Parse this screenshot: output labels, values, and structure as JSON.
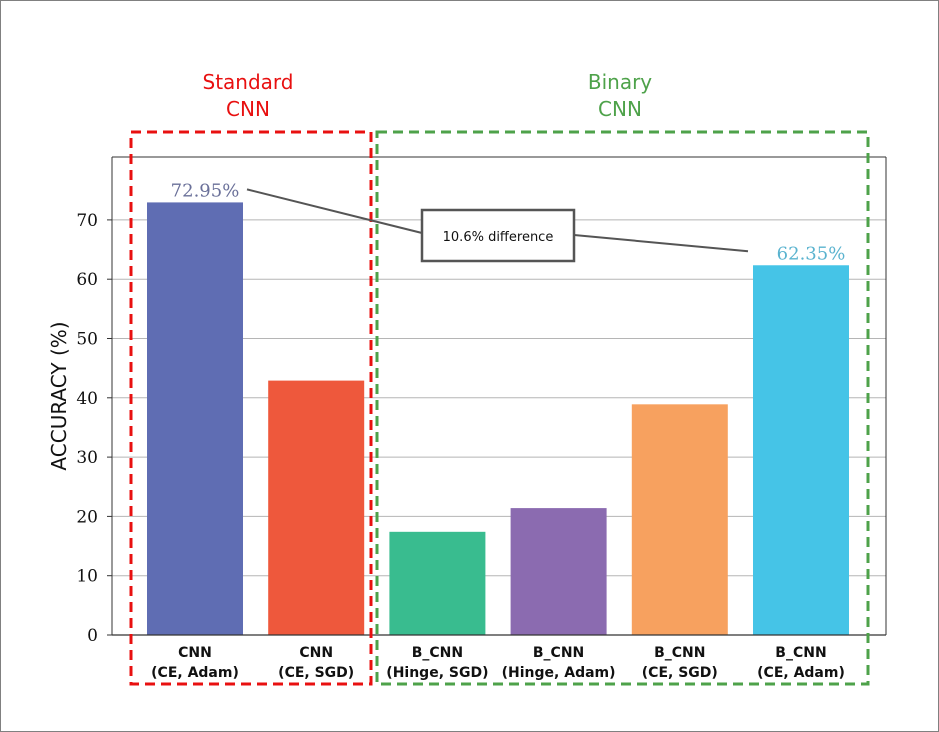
{
  "chart_data": {
    "type": "bar",
    "title": "",
    "xlabel": "",
    "ylabel": "ACCURACY (%)",
    "ylim": [
      0,
      80
    ],
    "yticks": [
      0,
      10,
      20,
      30,
      40,
      50,
      60,
      70
    ],
    "grid": true,
    "categories": [
      [
        "CNN",
        "(CE, Adam)"
      ],
      [
        "CNN",
        "(CE, SGD)"
      ],
      [
        "B_CNN",
        "(Hinge, SGD)"
      ],
      [
        "B_CNN",
        "(Hinge, Adam)"
      ],
      [
        "B_CNN",
        "(CE, SGD)"
      ],
      [
        "B_CNN",
        "(CE, Adam)"
      ]
    ],
    "values": [
      72.95,
      42.9,
      17.4,
      21.4,
      38.9,
      62.35
    ],
    "bar_colors": [
      "#5f6db3",
      "#ee583c",
      "#39bc8f",
      "#8b6bb0",
      "#f7a15f",
      "#45c4e7"
    ],
    "data_labels": [
      {
        "bar": 0,
        "text": "72.95%",
        "color": "#6a7099"
      },
      {
        "bar": 5,
        "text": "62.35%",
        "color": "#5ab3cf"
      }
    ],
    "groups": [
      {
        "label_lines": [
          "Standard",
          "CNN"
        ],
        "bars": [
          0,
          1
        ],
        "color": "#e81010"
      },
      {
        "label_lines": [
          "Binary",
          "CNN"
        ],
        "bars": [
          2,
          3,
          4,
          5
        ],
        "color": "#4ea24a"
      }
    ],
    "annotation": {
      "text": "10.6% difference",
      "from_bar": 0,
      "to_bar": 5
    }
  }
}
